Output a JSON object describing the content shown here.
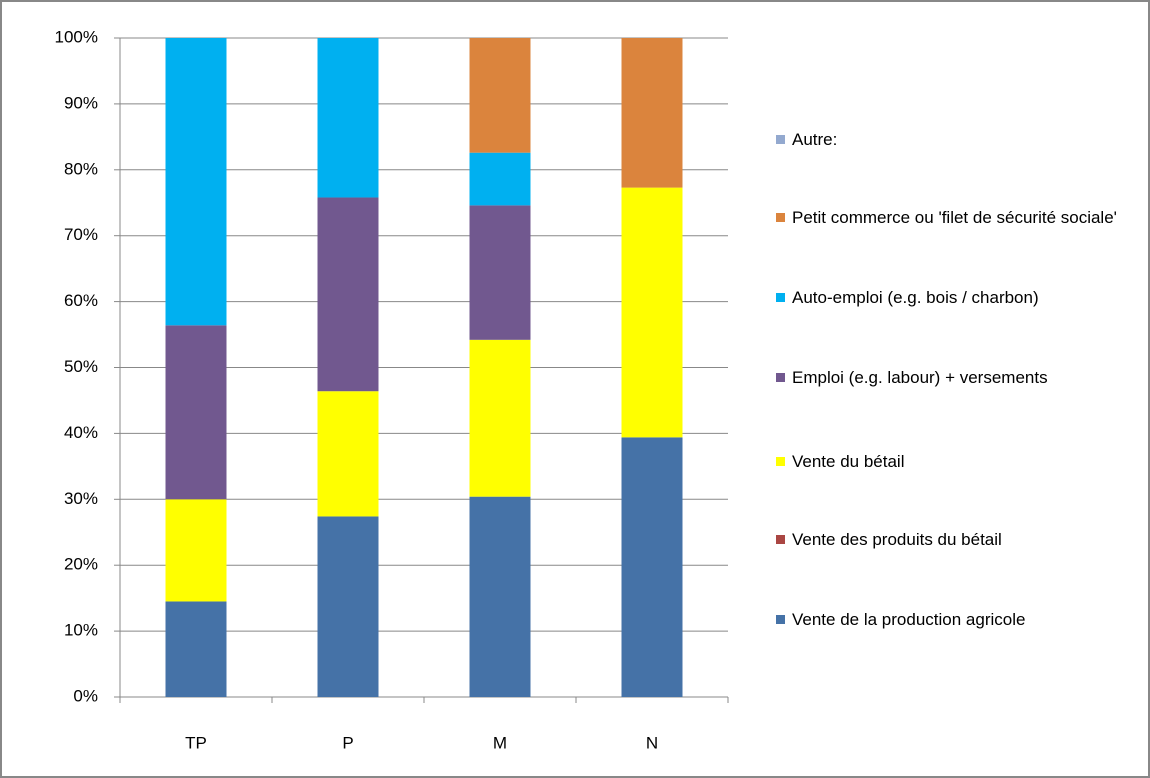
{
  "chart_data": {
    "type": "stacked_bar_100",
    "categories": [
      "TP",
      "P",
      "M",
      "N"
    ],
    "series": [
      {
        "name": "Vente de la production agricole",
        "color": "#4572a7",
        "values": [
          14.5,
          27.4,
          30.4,
          39.4
        ]
      },
      {
        "name": "Vente des produits du bétail",
        "color": "#aa4643",
        "values": [
          0,
          0,
          0,
          0
        ]
      },
      {
        "name": "Vente du bétail",
        "color": "#ffff00",
        "values": [
          15.5,
          19.0,
          23.8,
          37.9
        ]
      },
      {
        "name": "Emploi (e.g. labour) + versements",
        "color": "#71588f",
        "values": [
          26.4,
          29.4,
          20.4,
          0
        ]
      },
      {
        "name": "Auto-emploi (e.g. bois / charbon)",
        "color": "#00b0f0",
        "values": [
          43.6,
          24.2,
          8.0,
          0
        ]
      },
      {
        "name": "Petit commerce ou 'filet de sécurité sociale'",
        "color": "#db843d",
        "values": [
          0,
          0,
          17.4,
          22.7
        ]
      },
      {
        "name": "Autre:",
        "color": "#93a9cf",
        "values": [
          0,
          0,
          0,
          0
        ]
      }
    ],
    "ylim": [
      0,
      100
    ],
    "yticks": [
      {
        "value": 0,
        "label": "0%"
      },
      {
        "value": 10,
        "label": "10%"
      },
      {
        "value": 20,
        "label": "20%"
      },
      {
        "value": 30,
        "label": "30%"
      },
      {
        "value": 40,
        "label": "40%"
      },
      {
        "value": 50,
        "label": "50%"
      },
      {
        "value": 60,
        "label": "60%"
      },
      {
        "value": 70,
        "label": "70%"
      },
      {
        "value": 80,
        "label": "80%"
      },
      {
        "value": 90,
        "label": "90%"
      },
      {
        "value": 100,
        "label": "100%"
      }
    ],
    "grid": true,
    "legend": "right"
  }
}
